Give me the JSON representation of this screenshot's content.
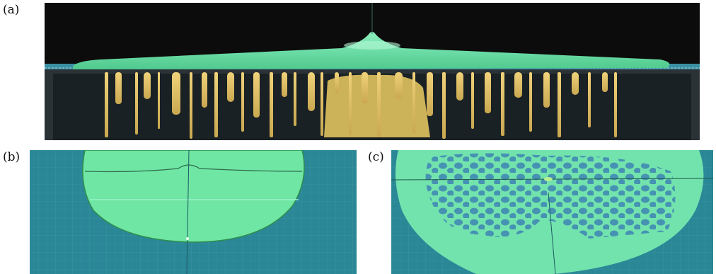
{
  "panels": [
    {
      "label": "(a)"
    },
    {
      "label": "(b)"
    },
    {
      "label": "(c)"
    }
  ],
  "colors": {
    "fluid_green": "#6fe0a6",
    "drip_yellow": "#e3c46a",
    "tank_dark": "#151a1c",
    "table_cyan": "#2f8f9e",
    "patch_blue": "#3f8fb0"
  }
}
